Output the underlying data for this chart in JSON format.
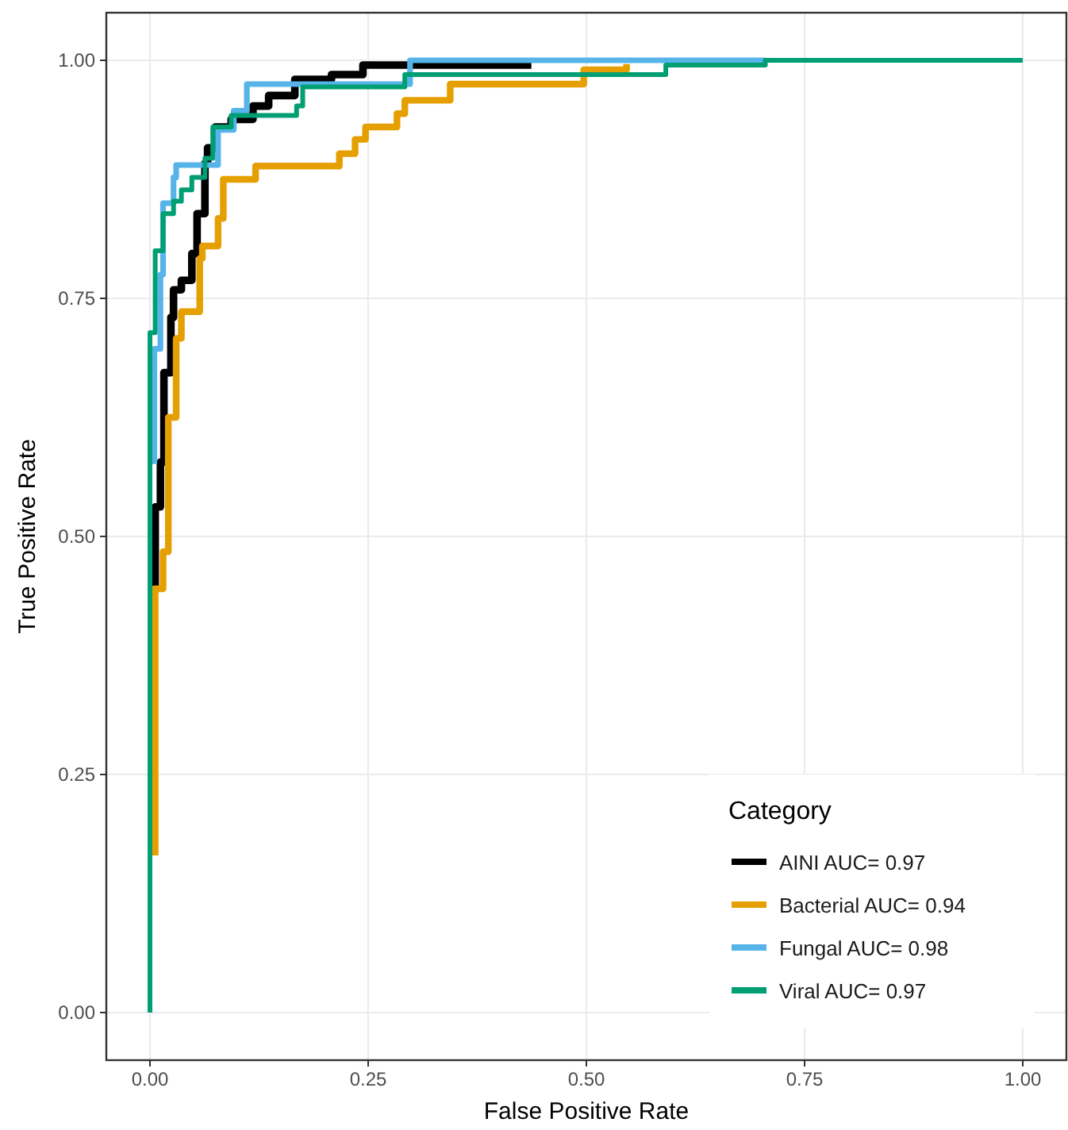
{
  "chart_data": {
    "type": "line",
    "xlabel": "False Positive Rate",
    "ylabel": "True Positive Rate",
    "legend_title": "Category",
    "legend": "bottom right",
    "grid": true,
    "line_style": "solid",
    "marker": "none",
    "xlim": [
      -0.05,
      1.05
    ],
    "ylim": [
      -0.05,
      1.05
    ],
    "xticks": [
      {
        "value": 0,
        "label": "0.00"
      },
      {
        "value": 0.25,
        "label": "0.25"
      },
      {
        "value": 0.5,
        "label": "0.50"
      },
      {
        "value": 0.75,
        "label": "0.75"
      },
      {
        "value": 1,
        "label": "1.00"
      }
    ],
    "yticks": [
      {
        "value": 0,
        "label": "0.00"
      },
      {
        "value": 0.25,
        "label": "0.25"
      },
      {
        "value": 0.5,
        "label": "0.50"
      },
      {
        "value": 0.75,
        "label": "0.75"
      },
      {
        "value": 1,
        "label": "1.00"
      }
    ],
    "series": [
      {
        "name": "AINI AUC= 0.97",
        "color": "#000000",
        "x": [
          0.006,
          0.006,
          0.012,
          0.012,
          0.016,
          0.016,
          0.024,
          0.024,
          0.027,
          0.027,
          0.036,
          0.036,
          0.048,
          0.048,
          0.054,
          0.054,
          0.063,
          0.063,
          0.066,
          0.066,
          0.075,
          0.075,
          0.093,
          0.093,
          0.118,
          0.118,
          0.136,
          0.136,
          0.166,
          0.166,
          0.208,
          0.208,
          0.244,
          0.244,
          0.389,
          0.389,
          0.437
        ],
        "values": [
          0.448,
          0.531,
          0.531,
          0.578,
          0.578,
          0.672,
          0.672,
          0.73,
          0.73,
          0.759,
          0.759,
          0.769,
          0.769,
          0.797,
          0.797,
          0.839,
          0.839,
          0.892,
          0.892,
          0.908,
          0.908,
          0.93,
          0.93,
          0.938,
          0.938,
          0.952,
          0.952,
          0.963,
          0.963,
          0.98,
          0.98,
          0.985,
          0.985,
          0.995,
          0.995,
          0.995,
          0.995
        ]
      },
      {
        "name": "Bacterial AUC= 0.94",
        "color": "#e69f00",
        "x": [
          0.006,
          0.006,
          0.015,
          0.015,
          0.021,
          0.021,
          0.03,
          0.03,
          0.036,
          0.036,
          0.057,
          0.057,
          0.06,
          0.06,
          0.078,
          0.078,
          0.084,
          0.084,
          0.121,
          0.121,
          0.217,
          0.217,
          0.235,
          0.235,
          0.247,
          0.247,
          0.283,
          0.283,
          0.292,
          0.292,
          0.344,
          0.344,
          0.497,
          0.497,
          0.546,
          0.546
        ],
        "values": [
          0.165,
          0.445,
          0.445,
          0.484,
          0.484,
          0.625,
          0.625,
          0.708,
          0.708,
          0.736,
          0.736,
          0.792,
          0.792,
          0.805,
          0.805,
          0.834,
          0.834,
          0.875,
          0.875,
          0.889,
          0.889,
          0.902,
          0.902,
          0.917,
          0.917,
          0.93,
          0.93,
          0.944,
          0.944,
          0.958,
          0.958,
          0.975,
          0.975,
          0.99,
          0.99,
          0.996
        ]
      },
      {
        "name": "Fungal AUC= 0.98",
        "color": "#56b4e9",
        "x": [
          0.005,
          0.005,
          0.012,
          0.012,
          0.015,
          0.015,
          0.027,
          0.027,
          0.03,
          0.03,
          0.078,
          0.078,
          0.096,
          0.096,
          0.111,
          0.111,
          0.298,
          0.298,
          0.705
        ],
        "values": [
          0.576,
          0.697,
          0.697,
          0.775,
          0.775,
          0.85,
          0.85,
          0.877,
          0.877,
          0.89,
          0.89,
          0.927,
          0.927,
          0.947,
          0.947,
          0.975,
          0.975,
          1,
          1
        ]
      },
      {
        "name": "Viral AUC= 0.97",
        "color": "#009e73",
        "x": [
          0,
          0,
          0.006,
          0.006,
          0.015,
          0.015,
          0.027,
          0.027,
          0.036,
          0.036,
          0.048,
          0.048,
          0.063,
          0.063,
          0.072,
          0.072,
          0.093,
          0.093,
          0.168,
          0.168,
          0.175,
          0.175,
          0.292,
          0.292,
          0.591,
          0.591,
          0.705,
          0.705,
          1
        ],
        "values": [
          0,
          0.714,
          0.714,
          0.8,
          0.8,
          0.839,
          0.839,
          0.852,
          0.852,
          0.864,
          0.864,
          0.877,
          0.877,
          0.897,
          0.897,
          0.93,
          0.93,
          0.942,
          0.942,
          0.952,
          0.952,
          0.972,
          0.972,
          0.985,
          0.985,
          0.995,
          0.995,
          1,
          1
        ]
      }
    ]
  }
}
